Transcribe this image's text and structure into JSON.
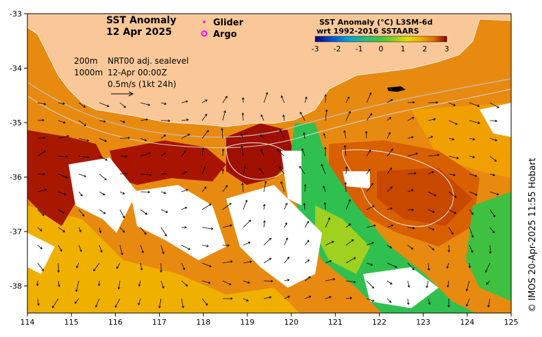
{
  "title": {
    "line1": "SST Anomaly",
    "line2": "12 Apr 2025"
  },
  "legend": {
    "glider": "Glider",
    "argo": "Argo",
    "glider_color": "#ff00ff",
    "argo_color": "#ff00ff"
  },
  "colorbar": {
    "title_line1": "SST Anomaly (°C) L3SM-6d",
    "title_line2": "wrt 1992-2016 SSTAARS",
    "ticks": [
      "-3",
      "-2",
      "-1",
      "0",
      "1",
      "2",
      "3"
    ],
    "colors": [
      "#000080",
      "#0050d0",
      "#00a0e0",
      "#30c070",
      "#40c840",
      "#90d020",
      "#e0e000",
      "#f0b000",
      "#e07000",
      "#c03000",
      "#900000"
    ]
  },
  "info": {
    "depth_200": "200m",
    "depth_1000": "1000m",
    "model": "NRT00 adj. sealevel",
    "time": "12-Apr 00:00Z",
    "scale": "0.5m/s (1kt 24h)"
  },
  "axes": {
    "x_ticks": [
      "114",
      "115",
      "116",
      "117",
      "118",
      "119",
      "120",
      "121",
      "122",
      "123",
      "124",
      "125"
    ],
    "y_ticks": [
      "-33",
      "-34",
      "-35",
      "-36",
      "-37",
      "-38"
    ]
  },
  "credit": "© IMOS 20-Apr-2025 11:55 Hobart",
  "colors": {
    "land": "#fac898",
    "warm": "#e08000",
    "hot": "#a01000",
    "cool": "#30c050",
    "cloud": "#ffffff"
  }
}
